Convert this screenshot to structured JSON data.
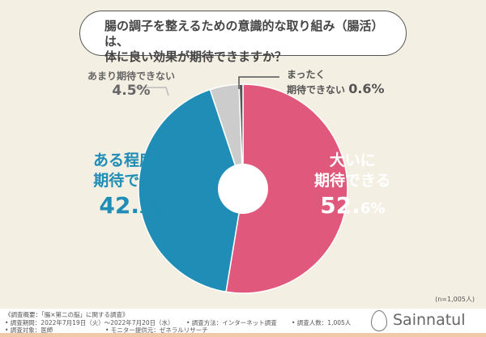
{
  "title": {
    "line1": "腸の調子を整えるための意識的な取り組み（腸活）は、",
    "line2": "体に良い効果が期待できますか？"
  },
  "chart_data": {
    "type": "pie",
    "donut": true,
    "title": "腸の調子を整えるための意識的な取り組み（腸活）は、体に良い効果が期待できますか？",
    "categories": [
      "大いに期待できる",
      "ある程度は期待できる",
      "あまり期待できない",
      "まったく期待できない"
    ],
    "values": [
      52.6,
      42.3,
      4.5,
      0.6
    ],
    "colors": [
      "#e0587b",
      "#1f8db5",
      "#cccccc",
      "#555555"
    ],
    "labels": [
      {
        "l1": "大いに",
        "l2": "期待できる",
        "num": "52.",
        "dec": "6%"
      },
      {
        "l1": "ある程度は",
        "l2": "期待できる",
        "num": "42.",
        "dec": "3%"
      },
      {
        "l1": "あまり期待できない",
        "num": "4.5%"
      },
      {
        "l1": "まったく",
        "l2": "期待できない",
        "num": "0.6%"
      }
    ],
    "n": "(n=1,005人)"
  },
  "footer": {
    "summary": "《調査概要：「腸×第二の脳」に関する調査》",
    "period": "• 調査期間：2022年7月19日（火）～2022年7月20日（水）",
    "method": "• 調査方法：インターネット調査",
    "count": "• 調査人数：1,005人",
    "target": "• 調査対象：医師",
    "provider": "• モニター提供元：ゼネラルリサーチ",
    "brand": "Sainnatul"
  }
}
